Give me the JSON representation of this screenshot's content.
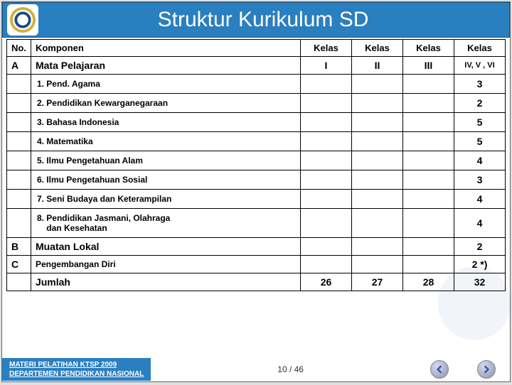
{
  "title": "Struktur Kurikulum SD",
  "headers": {
    "no": "No.",
    "komponen": "Komponen",
    "kelas": "Kelas",
    "k1": "I",
    "k2": "II",
    "k3": "III",
    "k4": "IV,  V , VI"
  },
  "sectionA": {
    "no": "A",
    "label": "Mata Pelajaran"
  },
  "subjects": [
    {
      "label": "1. Pend. Agama",
      "val": "3"
    },
    {
      "label": "2. Pendidikan Kewarganegaraan",
      "val": "2"
    },
    {
      "label": "3. Bahasa Indonesia",
      "val": "5"
    },
    {
      "label": "4. Matematika",
      "val": "5"
    },
    {
      "label": "5. Ilmu Pengetahuan Alam",
      "val": "4"
    },
    {
      "label": "6. Ilmu Pengetahuan Sosial",
      "val": "3"
    },
    {
      "label": "7. Seni Budaya dan Keterampilan",
      "val": "4"
    },
    {
      "label": "8. Pendidikan Jasmani, Olahraga dan Kesehatan",
      "val": "4",
      "multiline": true
    }
  ],
  "sectionB": {
    "no": "B",
    "label": "Muatan Lokal",
    "val": "2"
  },
  "sectionC": {
    "no": "C",
    "label": "Pengembangan Diri",
    "val": "2 *)"
  },
  "total": {
    "label": "Jumlah",
    "k1": "26",
    "k2": "27",
    "k3": "28",
    "k4": "32"
  },
  "footer": {
    "line1": "MATERI PELATIHAN KTSP 2009",
    "line2": "DEPARTEMEN PENDIDIKAN NASIONAL",
    "page": "10 / 46"
  },
  "colors": {
    "accent": "#2a7fc0",
    "border": "#000000"
  }
}
